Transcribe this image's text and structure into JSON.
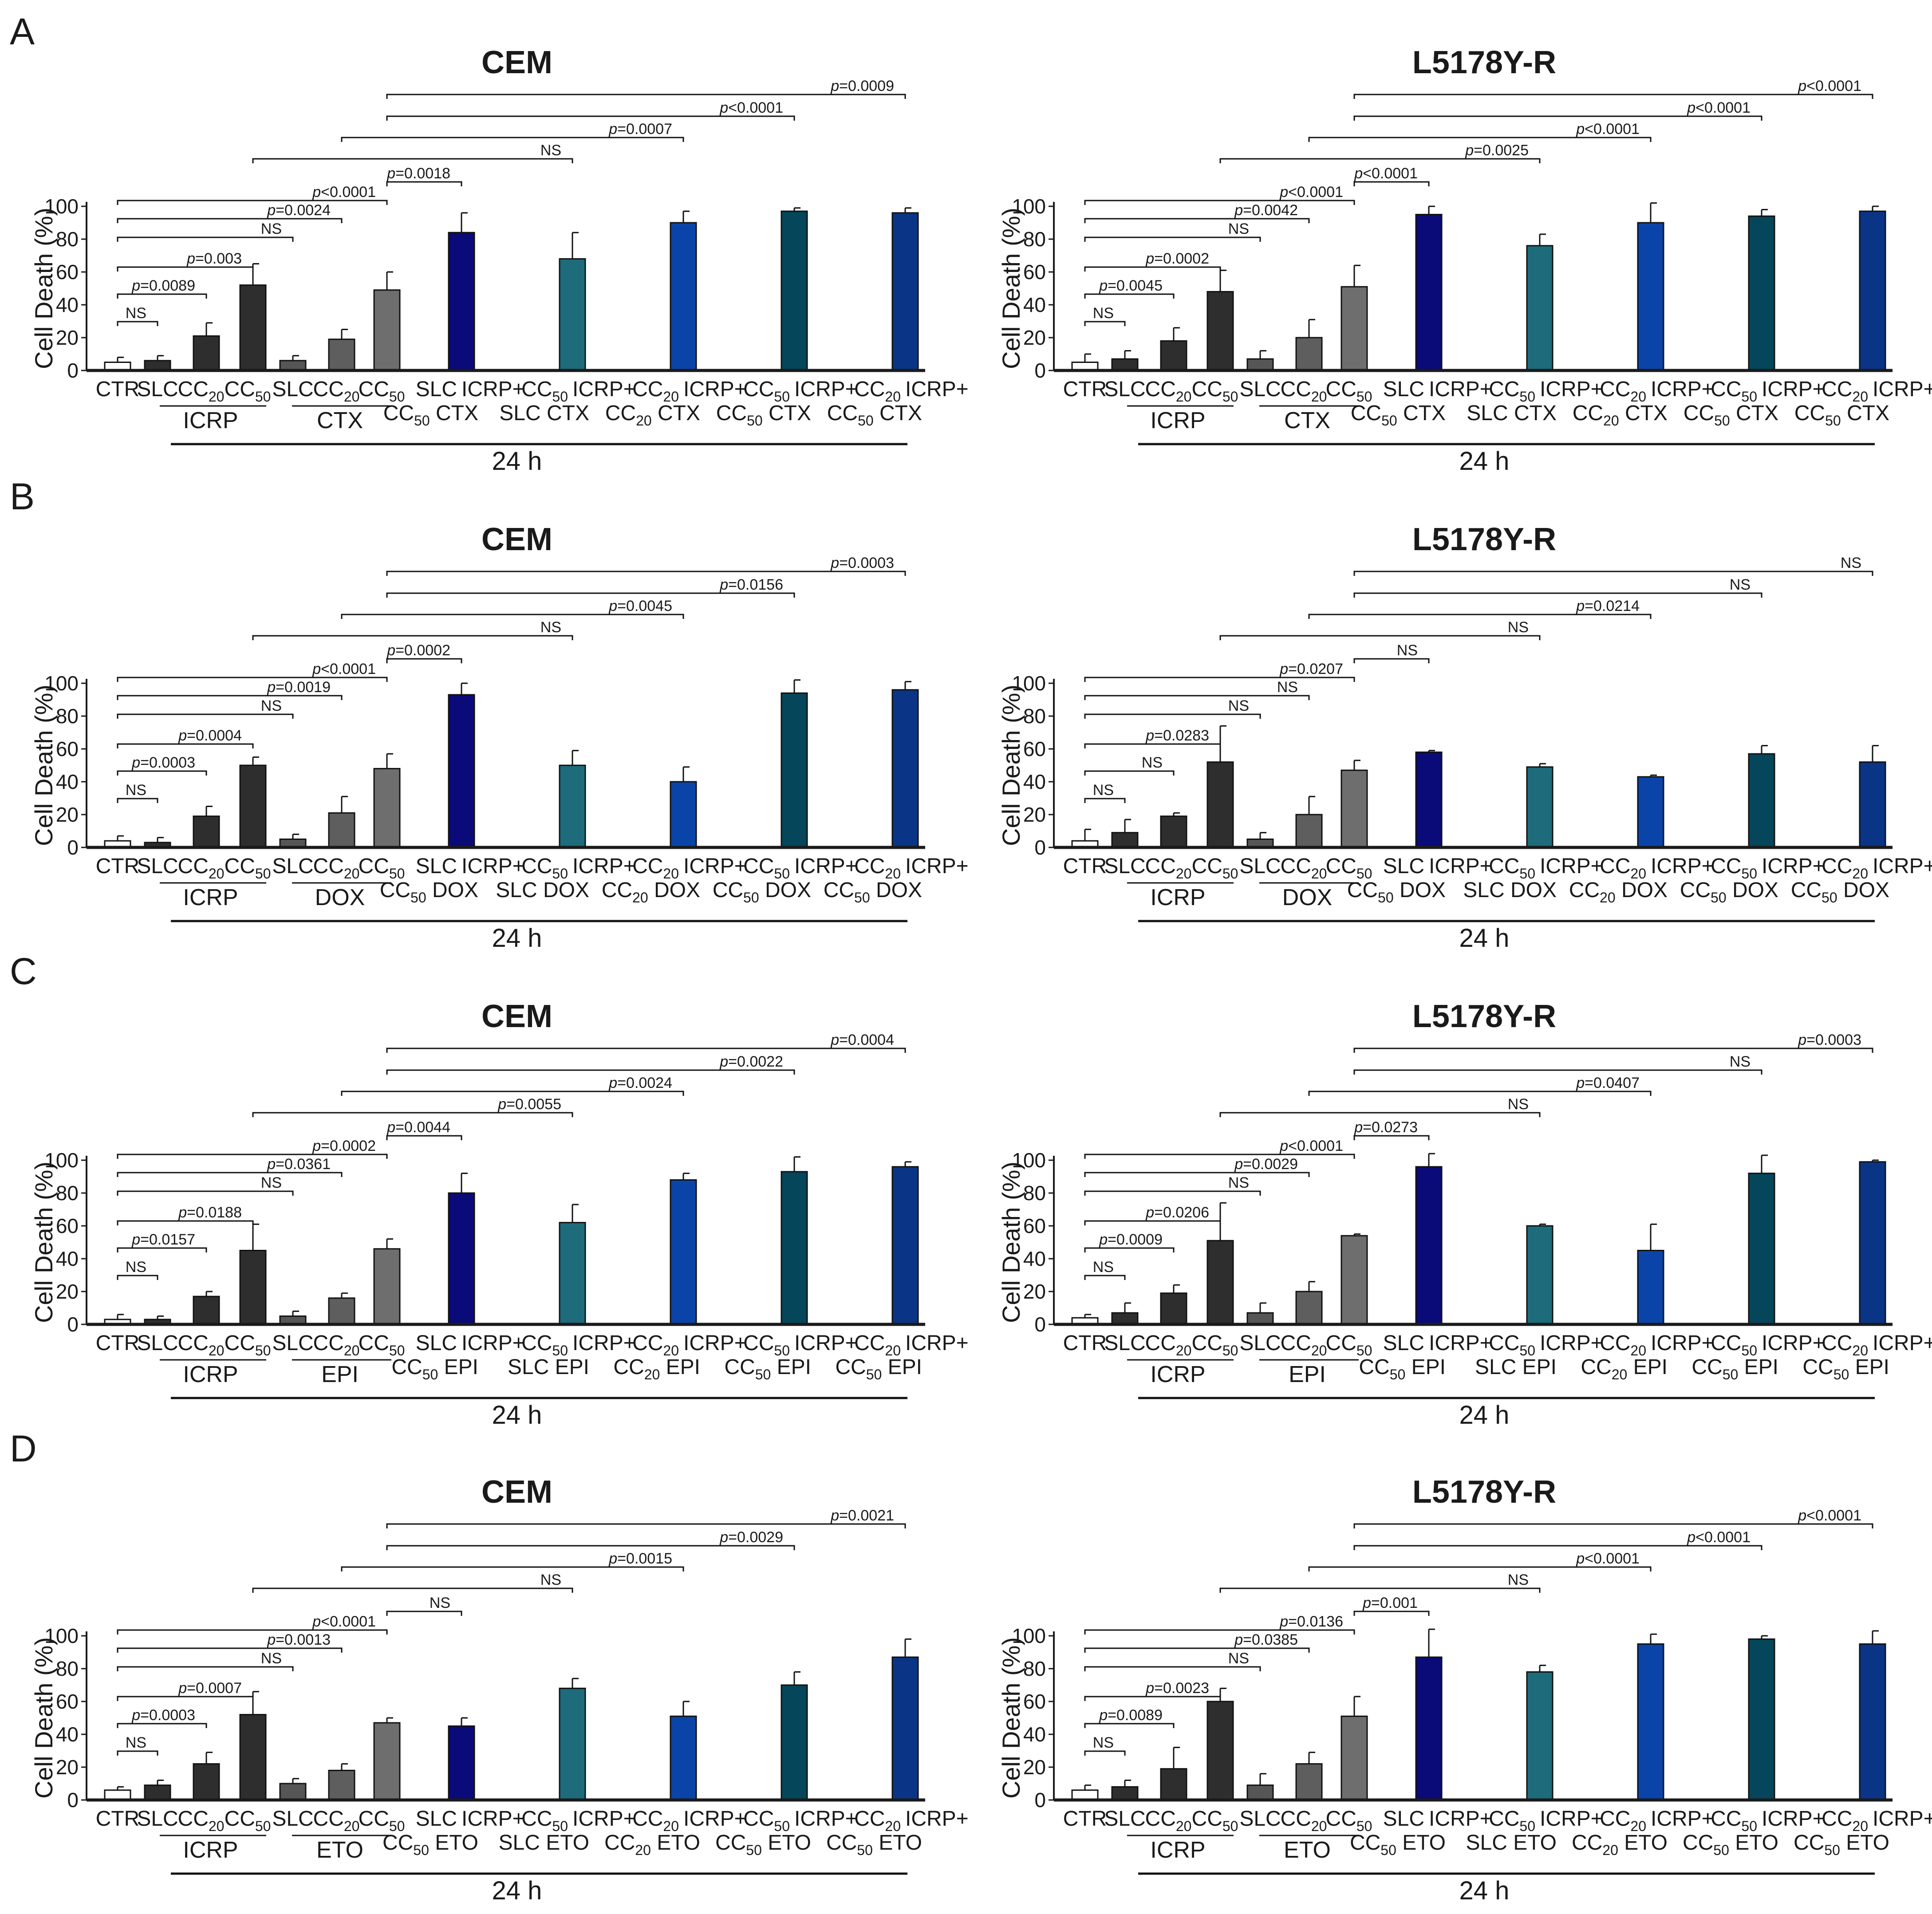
{
  "figure": {
    "panel_letters": [
      "A",
      "B",
      "C",
      "D"
    ],
    "title_left": "CEM",
    "title_right": "L5178Y-R"
  },
  "colors": {
    "CTR": "#ffffff",
    "ICRP_SLC": "#2e2e2e",
    "ICRP_CC20": "#2e2e2e",
    "ICRP_CC50": "#2e2e2e",
    "DRUG_SLC": "#565656",
    "DRUG_CC20": "#5e5e5e",
    "DRUG_CC50": "#6e6e6e",
    "COMBO_1": "#0a0a78",
    "COMBO_2": "#1d6b7b",
    "COMBO_3": "#0a44a8",
    "COMBO_4": "#05465b",
    "COMBO_5": "#0a3486",
    "axis": "#1a1a1a"
  },
  "chart_data": [
    {
      "type": "bar",
      "panel": "A",
      "title": "CEM",
      "drug": "CTX",
      "ylabel": "Cell Death (%)",
      "ylim": [
        0,
        100
      ],
      "yticks": [
        0,
        20,
        40,
        60,
        80,
        100
      ],
      "time_label": "24 h",
      "values": [
        5,
        6,
        21,
        52,
        6,
        19,
        49,
        84,
        68,
        90,
        97,
        96
      ],
      "errors": [
        3,
        3,
        8,
        13,
        3,
        6,
        11,
        12,
        16,
        7,
        2,
        3
      ],
      "comparisons": [
        {
          "from": 0,
          "to": 1,
          "label": "NS"
        },
        {
          "from": 0,
          "to": 2,
          "label": "p=0.0089"
        },
        {
          "from": 0,
          "to": 3,
          "label": "p=0.003"
        },
        {
          "from": 0,
          "to": 4,
          "label": "NS"
        },
        {
          "from": 0,
          "to": 5,
          "label": "p=0.0024"
        },
        {
          "from": 0,
          "to": 6,
          "label": "p<0.0001"
        },
        {
          "from": 6,
          "to": 7,
          "label": "p=0.0018"
        },
        {
          "from": 3,
          "to": 8,
          "label": "NS"
        },
        {
          "from": 5,
          "to": 9,
          "label": "p=0.0007"
        },
        {
          "from": 6,
          "to": 10,
          "label": "p<0.0001"
        },
        {
          "from": 6,
          "to": 11,
          "label": "p=0.0009"
        }
      ]
    },
    {
      "type": "bar",
      "panel": "A",
      "title": "L5178Y-R",
      "drug": "CTX",
      "ylabel": "Cell Death (%)",
      "ylim": [
        0,
        100
      ],
      "yticks": [
        0,
        20,
        40,
        60,
        80,
        100
      ],
      "time_label": "24 h",
      "values": [
        5,
        7,
        18,
        48,
        7,
        20,
        51,
        95,
        76,
        90,
        94,
        97
      ],
      "errors": [
        5,
        5,
        8,
        13,
        5,
        11,
        13,
        5,
        7,
        12,
        4,
        3
      ],
      "comparisons": [
        {
          "from": 0,
          "to": 1,
          "label": "NS"
        },
        {
          "from": 0,
          "to": 2,
          "label": "p=0.0045"
        },
        {
          "from": 0,
          "to": 3,
          "label": "p=0.0002"
        },
        {
          "from": 0,
          "to": 4,
          "label": "NS"
        },
        {
          "from": 0,
          "to": 5,
          "label": "p=0.0042"
        },
        {
          "from": 0,
          "to": 6,
          "label": "p<0.0001"
        },
        {
          "from": 6,
          "to": 7,
          "label": "p<0.0001"
        },
        {
          "from": 3,
          "to": 8,
          "label": "p=0.0025"
        },
        {
          "from": 5,
          "to": 9,
          "label": "p<0.0001"
        },
        {
          "from": 6,
          "to": 10,
          "label": "p<0.0001"
        },
        {
          "from": 6,
          "to": 11,
          "label": "p<0.0001"
        }
      ]
    },
    {
      "type": "bar",
      "panel": "B",
      "title": "CEM",
      "drug": "DOX",
      "ylabel": "Cell Death (%)",
      "ylim": [
        0,
        100
      ],
      "yticks": [
        0,
        20,
        40,
        60,
        80,
        100
      ],
      "time_label": "24 h",
      "values": [
        4,
        3,
        19,
        50,
        5,
        21,
        48,
        93,
        50,
        40,
        94,
        96
      ],
      "errors": [
        3,
        3,
        6,
        5,
        3,
        10,
        9,
        7,
        9,
        9,
        8,
        5
      ],
      "comparisons": [
        {
          "from": 0,
          "to": 1,
          "label": "NS"
        },
        {
          "from": 0,
          "to": 2,
          "label": "p=0.0003"
        },
        {
          "from": 0,
          "to": 3,
          "label": "p=0.0004"
        },
        {
          "from": 0,
          "to": 4,
          "label": "NS"
        },
        {
          "from": 0,
          "to": 5,
          "label": "p=0.0019"
        },
        {
          "from": 0,
          "to": 6,
          "label": "p<0.0001"
        },
        {
          "from": 6,
          "to": 7,
          "label": "p=0.0002"
        },
        {
          "from": 3,
          "to": 8,
          "label": "NS"
        },
        {
          "from": 5,
          "to": 9,
          "label": "p=0.0045"
        },
        {
          "from": 6,
          "to": 10,
          "label": "p=0.0156"
        },
        {
          "from": 6,
          "to": 11,
          "label": "p=0.0003"
        }
      ]
    },
    {
      "type": "bar",
      "panel": "B",
      "title": "L5178Y-R",
      "drug": "DOX",
      "ylabel": "Cell Death (%)",
      "ylim": [
        0,
        100
      ],
      "yticks": [
        0,
        20,
        40,
        60,
        80,
        100
      ],
      "time_label": "24 h",
      "values": [
        4,
        9,
        19,
        52,
        5,
        20,
        47,
        58,
        49,
        43,
        57,
        52
      ],
      "errors": [
        7,
        8,
        2,
        22,
        4,
        11,
        6,
        1,
        2,
        1,
        5,
        10
      ],
      "comparisons": [
        {
          "from": 0,
          "to": 1,
          "label": "NS"
        },
        {
          "from": 0,
          "to": 2,
          "label": "NS"
        },
        {
          "from": 0,
          "to": 3,
          "label": "p=0.0283"
        },
        {
          "from": 0,
          "to": 4,
          "label": "NS"
        },
        {
          "from": 0,
          "to": 5,
          "label": "NS"
        },
        {
          "from": 0,
          "to": 6,
          "label": "p=0.0207"
        },
        {
          "from": 6,
          "to": 7,
          "label": "NS"
        },
        {
          "from": 3,
          "to": 8,
          "label": "NS"
        },
        {
          "from": 5,
          "to": 9,
          "label": "p=0.0214"
        },
        {
          "from": 6,
          "to": 10,
          "label": "NS"
        },
        {
          "from": 6,
          "to": 11,
          "label": "NS"
        }
      ]
    },
    {
      "type": "bar",
      "panel": "C",
      "title": "CEM",
      "drug": "EPI",
      "ylabel": "Cell Death (%)",
      "ylim": [
        0,
        100
      ],
      "yticks": [
        0,
        20,
        40,
        60,
        80,
        100
      ],
      "time_label": "24 h",
      "values": [
        3,
        3,
        17,
        45,
        5,
        16,
        46,
        80,
        62,
        88,
        93,
        96
      ],
      "errors": [
        3,
        2,
        3,
        16,
        3,
        3,
        6,
        12,
        11,
        4,
        9,
        3
      ],
      "comparisons": [
        {
          "from": 0,
          "to": 1,
          "label": "NS"
        },
        {
          "from": 0,
          "to": 2,
          "label": "p=0.0157"
        },
        {
          "from": 0,
          "to": 3,
          "label": "p=0.0188"
        },
        {
          "from": 0,
          "to": 4,
          "label": "NS"
        },
        {
          "from": 0,
          "to": 5,
          "label": "p=0.0361"
        },
        {
          "from": 0,
          "to": 6,
          "label": "p=0.0002"
        },
        {
          "from": 6,
          "to": 7,
          "label": "p=0.0044"
        },
        {
          "from": 3,
          "to": 8,
          "label": "p=0.0055"
        },
        {
          "from": 5,
          "to": 9,
          "label": "p=0.0024"
        },
        {
          "from": 6,
          "to": 10,
          "label": "p=0.0022"
        },
        {
          "from": 6,
          "to": 11,
          "label": "p=0.0004"
        }
      ]
    },
    {
      "type": "bar",
      "panel": "C",
      "title": "L5178Y-R",
      "drug": "EPI",
      "ylabel": "Cell Death (%)",
      "ylim": [
        0,
        100
      ],
      "yticks": [
        0,
        20,
        40,
        60,
        80,
        100
      ],
      "time_label": "24 h",
      "values": [
        4,
        7,
        19,
        51,
        7,
        20,
        54,
        96,
        60,
        45,
        92,
        99
      ],
      "errors": [
        2,
        6,
        5,
        23,
        6,
        6,
        1,
        8,
        1,
        16,
        11,
        1
      ],
      "comparisons": [
        {
          "from": 0,
          "to": 1,
          "label": "NS"
        },
        {
          "from": 0,
          "to": 2,
          "label": "p=0.0009"
        },
        {
          "from": 0,
          "to": 3,
          "label": "p=0.0206"
        },
        {
          "from": 0,
          "to": 4,
          "label": "NS"
        },
        {
          "from": 0,
          "to": 5,
          "label": "p=0.0029"
        },
        {
          "from": 0,
          "to": 6,
          "label": "p<0.0001"
        },
        {
          "from": 6,
          "to": 7,
          "label": "p=0.0273"
        },
        {
          "from": 3,
          "to": 8,
          "label": "NS"
        },
        {
          "from": 5,
          "to": 9,
          "label": "p=0.0407"
        },
        {
          "from": 6,
          "to": 10,
          "label": "NS"
        },
        {
          "from": 6,
          "to": 11,
          "label": "p=0.0003"
        }
      ]
    },
    {
      "type": "bar",
      "panel": "D",
      "title": "CEM",
      "drug": "ETO",
      "ylabel": "Cell Death (%)",
      "ylim": [
        0,
        100
      ],
      "yticks": [
        0,
        20,
        40,
        60,
        80,
        100
      ],
      "time_label": "24 h",
      "values": [
        6,
        9,
        22,
        52,
        10,
        18,
        47,
        45,
        68,
        51,
        70,
        87
      ],
      "errors": [
        2,
        3,
        7,
        14,
        3,
        4,
        3,
        5,
        6,
        9,
        8,
        11
      ],
      "comparisons": [
        {
          "from": 0,
          "to": 1,
          "label": "NS"
        },
        {
          "from": 0,
          "to": 2,
          "label": "p=0.0003"
        },
        {
          "from": 0,
          "to": 3,
          "label": "p=0.0007"
        },
        {
          "from": 0,
          "to": 4,
          "label": "NS"
        },
        {
          "from": 0,
          "to": 5,
          "label": "p=0.0013"
        },
        {
          "from": 0,
          "to": 6,
          "label": "p<0.0001"
        },
        {
          "from": 6,
          "to": 7,
          "label": "NS"
        },
        {
          "from": 3,
          "to": 8,
          "label": "NS"
        },
        {
          "from": 5,
          "to": 9,
          "label": "p=0.0015"
        },
        {
          "from": 6,
          "to": 10,
          "label": "p=0.0029"
        },
        {
          "from": 6,
          "to": 11,
          "label": "p=0.0021"
        }
      ]
    },
    {
      "type": "bar",
      "panel": "D",
      "title": "L5178Y-R",
      "drug": "ETO",
      "ylabel": "Cell Death (%)",
      "ylim": [
        0,
        100
      ],
      "yticks": [
        0,
        20,
        40,
        60,
        80,
        100
      ],
      "time_label": "24 h",
      "values": [
        6,
        8,
        19,
        60,
        9,
        22,
        51,
        87,
        78,
        95,
        98,
        95
      ],
      "errors": [
        3,
        4,
        13,
        8,
        7,
        7,
        12,
        17,
        4,
        6,
        2,
        8
      ],
      "comparisons": [
        {
          "from": 0,
          "to": 1,
          "label": "NS"
        },
        {
          "from": 0,
          "to": 2,
          "label": "p=0.0089"
        },
        {
          "from": 0,
          "to": 3,
          "label": "p=0.0023"
        },
        {
          "from": 0,
          "to": 4,
          "label": "NS"
        },
        {
          "from": 0,
          "to": 5,
          "label": "p=0.0385"
        },
        {
          "from": 0,
          "to": 6,
          "label": "p=0.0136"
        },
        {
          "from": 6,
          "to": 7,
          "label": "p=0.001"
        },
        {
          "from": 3,
          "to": 8,
          "label": "NS"
        },
        {
          "from": 5,
          "to": 9,
          "label": "p<0.0001"
        },
        {
          "from": 6,
          "to": 10,
          "label": "p<0.0001"
        },
        {
          "from": 6,
          "to": 11,
          "label": "p<0.0001"
        }
      ]
    }
  ]
}
